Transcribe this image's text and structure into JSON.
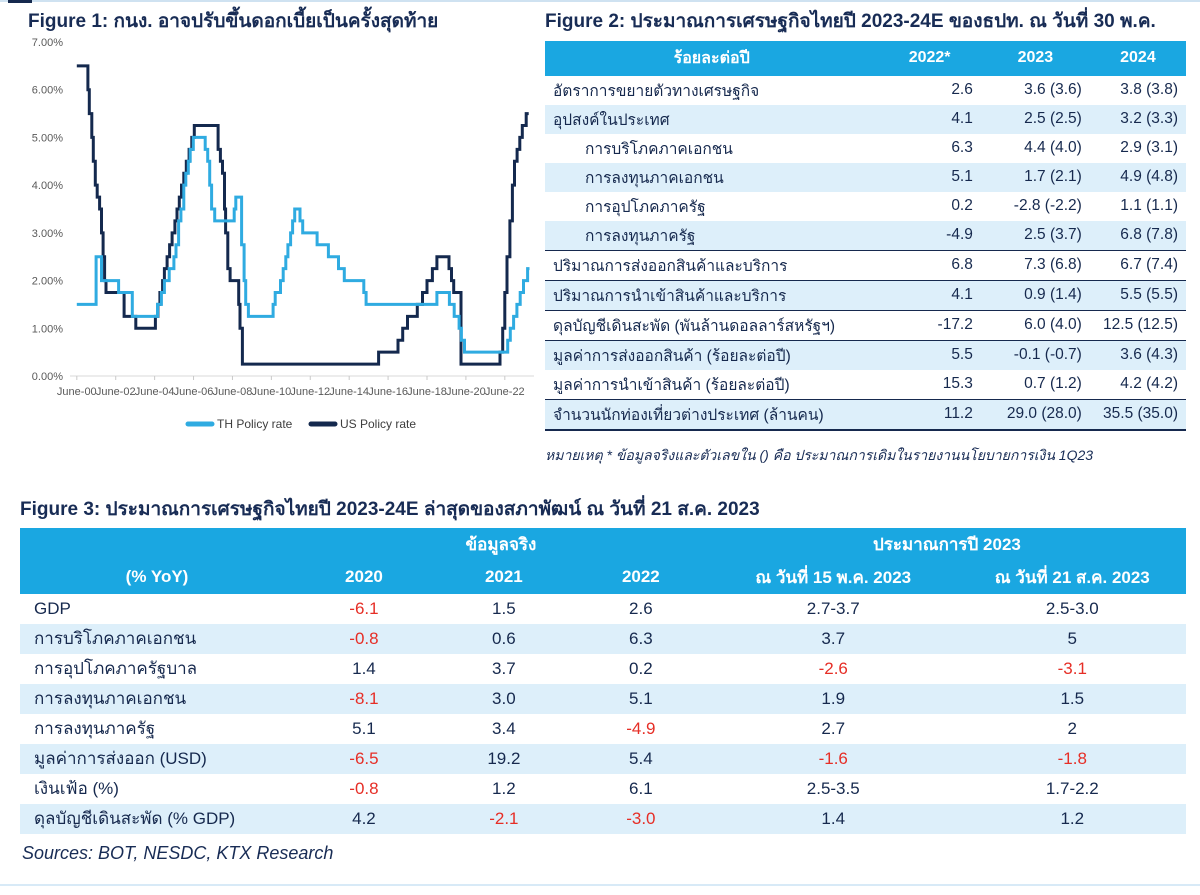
{
  "page": {
    "sources": "Sources: BOT, NESDC, KTX Research"
  },
  "colors": {
    "navy": "#16294E",
    "header_cyan": "#1AA7E1",
    "row_stripe": "#DDEFFA",
    "negative_red": "#E62E26",
    "th_line": "#2FABE1",
    "us_line": "#14294E"
  },
  "figure1": {
    "title": "Figure 1: กนง. อาจปรับขึ้นดอกเบี้ยเป็นครั้งสุดท้าย"
  },
  "chart_data": {
    "type": "line",
    "title": "Figure 1: กนง. อาจปรับขึ้นดอกเบี้ยเป็นครั้งสุดท้าย",
    "x_domain": [
      2000.1,
      2023.95
    ],
    "y_axis": {
      "min": 0,
      "max": 7,
      "tick_step": 1,
      "label_suffix": ".00%"
    },
    "x_axis": {
      "ticks": [
        2000.45,
        2002.45,
        2004.45,
        2006.45,
        2008.45,
        2010.45,
        2012.45,
        2014.45,
        2016.45,
        2018.45,
        2020.45,
        2022.45
      ],
      "labels": [
        "June-00",
        "June-02",
        "June-04",
        "June-06",
        "June-08",
        "June-10",
        "June-12",
        "June-14",
        "June-16",
        "June-18",
        "June-20",
        "June-22"
      ]
    },
    "legend_position": "bottom",
    "grid": false,
    "series": [
      {
        "name": "US Policy rate",
        "color": "#14294E",
        "end": 2023.68,
        "step_points": [
          [
            2000.45,
            6.5
          ],
          [
            2001.02,
            6.0
          ],
          [
            2001.09,
            5.5
          ],
          [
            2001.22,
            5.0
          ],
          [
            2001.3,
            4.5
          ],
          [
            2001.4,
            4.0
          ],
          [
            2001.5,
            3.75
          ],
          [
            2001.62,
            3.5
          ],
          [
            2001.72,
            3.0
          ],
          [
            2001.8,
            2.5
          ],
          [
            2001.88,
            2.0
          ],
          [
            2001.95,
            1.75
          ],
          [
            2002.88,
            1.25
          ],
          [
            2003.48,
            1.0
          ],
          [
            2004.49,
            1.25
          ],
          [
            2004.62,
            1.5
          ],
          [
            2004.72,
            1.75
          ],
          [
            2004.86,
            2.0
          ],
          [
            2004.95,
            2.25
          ],
          [
            2005.09,
            2.5
          ],
          [
            2005.22,
            2.75
          ],
          [
            2005.35,
            3.0
          ],
          [
            2005.49,
            3.25
          ],
          [
            2005.6,
            3.5
          ],
          [
            2005.72,
            3.75
          ],
          [
            2005.83,
            4.0
          ],
          [
            2005.95,
            4.25
          ],
          [
            2006.08,
            4.5
          ],
          [
            2006.22,
            4.75
          ],
          [
            2006.36,
            5.0
          ],
          [
            2006.49,
            5.25
          ],
          [
            2007.71,
            4.75
          ],
          [
            2007.83,
            4.5
          ],
          [
            2007.94,
            4.25
          ],
          [
            2008.04,
            3.5
          ],
          [
            2008.1,
            3.0
          ],
          [
            2008.21,
            2.25
          ],
          [
            2008.33,
            2.0
          ],
          [
            2008.77,
            1.5
          ],
          [
            2008.84,
            1.0
          ],
          [
            2008.96,
            0.25
          ],
          [
            2015.96,
            0.5
          ],
          [
            2016.96,
            0.75
          ],
          [
            2017.2,
            1.0
          ],
          [
            2017.45,
            1.25
          ],
          [
            2017.95,
            1.5
          ],
          [
            2018.22,
            1.75
          ],
          [
            2018.45,
            2.0
          ],
          [
            2018.73,
            2.25
          ],
          [
            2018.96,
            2.5
          ],
          [
            2019.58,
            2.25
          ],
          [
            2019.71,
            2.0
          ],
          [
            2019.82,
            1.75
          ],
          [
            2020.2,
            0.25
          ],
          [
            2022.2,
            0.5
          ],
          [
            2022.34,
            1.0
          ],
          [
            2022.45,
            1.75
          ],
          [
            2022.56,
            2.5
          ],
          [
            2022.71,
            3.25
          ],
          [
            2022.84,
            4.0
          ],
          [
            2022.95,
            4.5
          ],
          [
            2023.08,
            4.75
          ],
          [
            2023.22,
            5.0
          ],
          [
            2023.35,
            5.25
          ],
          [
            2023.55,
            5.5
          ]
        ]
      },
      {
        "name": "TH Policy rate",
        "color": "#2FABE1",
        "end": 2023.72,
        "step_points": [
          [
            2000.45,
            1.5
          ],
          [
            2001.44,
            2.5
          ],
          [
            2001.72,
            2.0
          ],
          [
            2002.6,
            1.75
          ],
          [
            2003.3,
            1.25
          ],
          [
            2004.6,
            1.5
          ],
          [
            2004.8,
            1.75
          ],
          [
            2004.95,
            2.0
          ],
          [
            2005.2,
            2.25
          ],
          [
            2005.44,
            2.5
          ],
          [
            2005.55,
            2.75
          ],
          [
            2005.68,
            3.25
          ],
          [
            2005.8,
            3.5
          ],
          [
            2005.95,
            4.0
          ],
          [
            2006.05,
            4.25
          ],
          [
            2006.18,
            4.5
          ],
          [
            2006.28,
            4.75
          ],
          [
            2006.44,
            5.0
          ],
          [
            2007.05,
            4.75
          ],
          [
            2007.18,
            4.5
          ],
          [
            2007.28,
            4.0
          ],
          [
            2007.38,
            3.5
          ],
          [
            2007.54,
            3.25
          ],
          [
            2008.54,
            3.5
          ],
          [
            2008.62,
            3.75
          ],
          [
            2008.92,
            2.75
          ],
          [
            2009.05,
            2.0
          ],
          [
            2009.13,
            1.5
          ],
          [
            2009.27,
            1.25
          ],
          [
            2010.54,
            1.5
          ],
          [
            2010.65,
            1.75
          ],
          [
            2010.92,
            2.0
          ],
          [
            2011.06,
            2.25
          ],
          [
            2011.19,
            2.5
          ],
          [
            2011.3,
            2.75
          ],
          [
            2011.44,
            3.0
          ],
          [
            2011.54,
            3.25
          ],
          [
            2011.65,
            3.5
          ],
          [
            2011.92,
            3.25
          ],
          [
            2012.06,
            3.0
          ],
          [
            2012.8,
            2.75
          ],
          [
            2013.38,
            2.5
          ],
          [
            2013.9,
            2.25
          ],
          [
            2014.2,
            2.0
          ],
          [
            2015.2,
            1.75
          ],
          [
            2015.32,
            1.5
          ],
          [
            2018.96,
            1.75
          ],
          [
            2019.6,
            1.5
          ],
          [
            2019.85,
            1.25
          ],
          [
            2020.1,
            1.0
          ],
          [
            2020.22,
            0.75
          ],
          [
            2020.38,
            0.5
          ],
          [
            2022.6,
            0.75
          ],
          [
            2022.73,
            1.0
          ],
          [
            2022.9,
            1.25
          ],
          [
            2023.07,
            1.5
          ],
          [
            2023.24,
            1.75
          ],
          [
            2023.41,
            2.0
          ],
          [
            2023.62,
            2.25
          ]
        ]
      }
    ]
  },
  "figure2": {
    "title": "Figure 2: ประมาณการเศรษฐกิจไทยปี 2023-24E ของธปท. ณ วันที่ 30 พ.ค.",
    "columns": [
      "ร้อยละต่อปี",
      "2022*",
      "2023",
      "2024"
    ],
    "rows": [
      {
        "label": "อัตราการขยายตัวทางเศรษฐกิจ",
        "indent": false,
        "rule": false,
        "values": [
          "2.6",
          "3.6 (3.6)",
          "3.8 (3.8)"
        ]
      },
      {
        "label": "อุปสงค์ในประเทศ",
        "indent": false,
        "rule": false,
        "values": [
          "4.1",
          "2.5 (2.5)",
          "3.2 (3.3)"
        ]
      },
      {
        "label": "การบริโภคภาคเอกชน",
        "indent": true,
        "rule": false,
        "values": [
          "6.3",
          "4.4 (4.0)",
          "2.9 (3.1)"
        ]
      },
      {
        "label": "การลงทุนภาคเอกชน",
        "indent": true,
        "rule": false,
        "values": [
          "5.1",
          "1.7 (2.1)",
          "4.9 (4.8)"
        ]
      },
      {
        "label": "การอุปโภคภาครัฐ",
        "indent": true,
        "rule": false,
        "values": [
          "0.2",
          "-2.8 (-2.2)",
          "1.1 (1.1)"
        ]
      },
      {
        "label": "การลงทุนภาครัฐ",
        "indent": true,
        "rule": false,
        "values": [
          "-4.9",
          "2.5 (3.7)",
          "6.8 (7.8)"
        ]
      },
      {
        "label": "ปริมาณการส่งออกสินค้าและบริการ",
        "indent": false,
        "rule": true,
        "values": [
          "6.8",
          "7.3 (6.8)",
          "6.7 (7.4)"
        ]
      },
      {
        "label": "ปริมาณการนำเข้าสินค้าและบริการ",
        "indent": false,
        "rule": true,
        "values": [
          "4.1",
          "0.9 (1.4)",
          "5.5 (5.5)"
        ]
      },
      {
        "label": "ดุลบัญชีเดินสะพัด (พันล้านดอลลาร์สหรัฐฯ)",
        "indent": false,
        "rule": true,
        "values": [
          "-17.2",
          "6.0 (4.0)",
          "12.5 (12.5)"
        ]
      },
      {
        "label": "มูลค่าการส่งออกสินค้า (ร้อยละต่อปี)",
        "indent": false,
        "rule": true,
        "values": [
          "5.5",
          "-0.1 (-0.7)",
          "3.6 (4.3)"
        ]
      },
      {
        "label": "มูลค่าการนำเข้าสินค้า (ร้อยละต่อปี)",
        "indent": false,
        "rule": false,
        "values": [
          "15.3",
          "0.7 (1.2)",
          "4.2 (4.2)"
        ]
      },
      {
        "label": "จำนวนนักท่องเที่ยวต่างประเทศ (ล้านคน)",
        "indent": false,
        "rule": true,
        "values": [
          "11.2",
          "29.0 (28.0)",
          "35.5 (35.0)"
        ]
      }
    ],
    "footnote": "หมายเหตุ * ข้อมูลจริงและตัวเลขใน () คือ ประมาณการเดิมในรายงานนโยบายการเงิน 1Q23"
  },
  "figure3": {
    "title": "Figure 3: ประมาณการเศรษฐกิจไทยปี 2023-24E ล่าสุดของสภาพัฒน์ ณ วันที่ 21 ส.ค. 2023",
    "group_headers": [
      {
        "label": "",
        "span": 1
      },
      {
        "label": "ข้อมูลจริง",
        "span": 3
      },
      {
        "label": "ประมาณการปี 2023",
        "span": 2
      }
    ],
    "columns": [
      "(% YoY)",
      "2020",
      "2021",
      "2022",
      "ณ วันที่ 15 พ.ค. 2023",
      "ณ วันที่ 21 ส.ค. 2023"
    ],
    "rows": [
      {
        "label": "GDP",
        "values": [
          "-6.1",
          "1.5",
          "2.6",
          "2.7-3.7",
          "2.5-3.0"
        ]
      },
      {
        "label": "การบริโภคภาคเอกชน",
        "values": [
          "-0.8",
          "0.6",
          "6.3",
          "3.7",
          "5"
        ]
      },
      {
        "label": "การอุปโภคภาครัฐบาล",
        "values": [
          "1.4",
          "3.7",
          "0.2",
          "-2.6",
          "-3.1"
        ]
      },
      {
        "label": "การลงทุนภาคเอกชน",
        "values": [
          "-8.1",
          "3.0",
          "5.1",
          "1.9",
          "1.5"
        ]
      },
      {
        "label": "การลงทุนภาครัฐ",
        "values": [
          "5.1",
          "3.4",
          "-4.9",
          "2.7",
          "2"
        ]
      },
      {
        "label": "มูลค่าการส่งออก (USD)",
        "values": [
          "-6.5",
          "19.2",
          "5.4",
          "-1.6",
          "-1.8"
        ]
      },
      {
        "label": "เงินเฟ้อ (%)",
        "values": [
          "-0.8",
          "1.2",
          "6.1",
          "2.5-3.5",
          "1.7-2.2"
        ]
      },
      {
        "label": "ดุลบัญชีเดินสะพัด (% GDP)",
        "values": [
          "4.2",
          "-2.1",
          "-3.0",
          "1.4",
          "1.2"
        ]
      }
    ]
  }
}
